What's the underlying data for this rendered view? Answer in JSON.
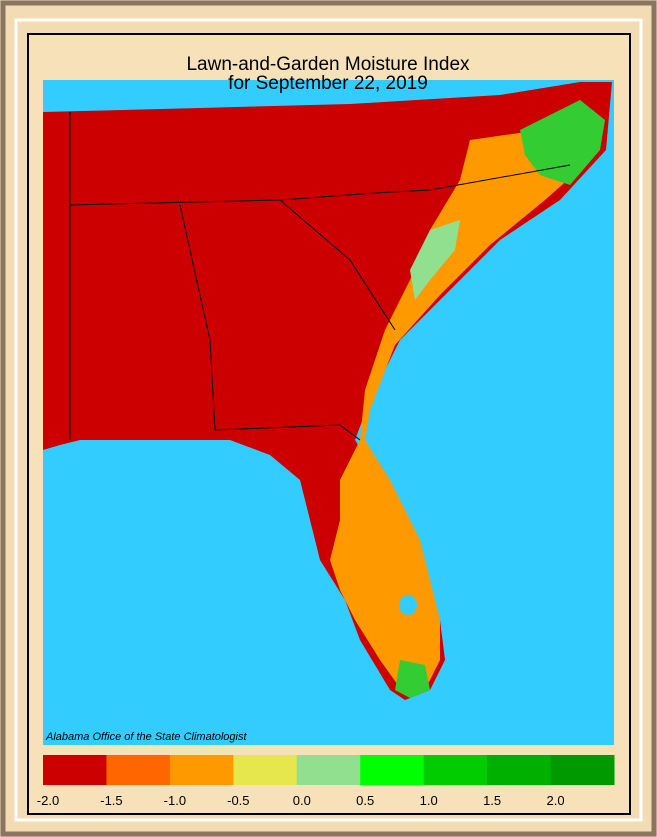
{
  "title": [
    "Lawn-and-Garden Moisture Index",
    "for September 22, 2019"
  ],
  "credit": "Alabama Office of the State Climatologist",
  "legend": {
    "colors": [
      "#cc0000",
      "#ff6600",
      "#ff9900",
      "#e6e64d",
      "#90e090",
      "#00ff00",
      "#00cc00",
      "#00b000",
      "#009900"
    ],
    "ticks": [
      {
        "value": -2.0,
        "label": "-2.0"
      },
      {
        "value": -1.5,
        "label": "-1.5"
      },
      {
        "value": -1.0,
        "label": "-1.0"
      },
      {
        "value": -0.5,
        "label": "-0.5"
      },
      {
        "value": 0.0,
        "label": "0.0"
      },
      {
        "value": 0.5,
        "label": "0.5"
      },
      {
        "value": 1.0,
        "label": "1.0"
      },
      {
        "value": 1.5,
        "label": "1.5"
      },
      {
        "value": 2.0,
        "label": "2.0"
      }
    ]
  }
}
